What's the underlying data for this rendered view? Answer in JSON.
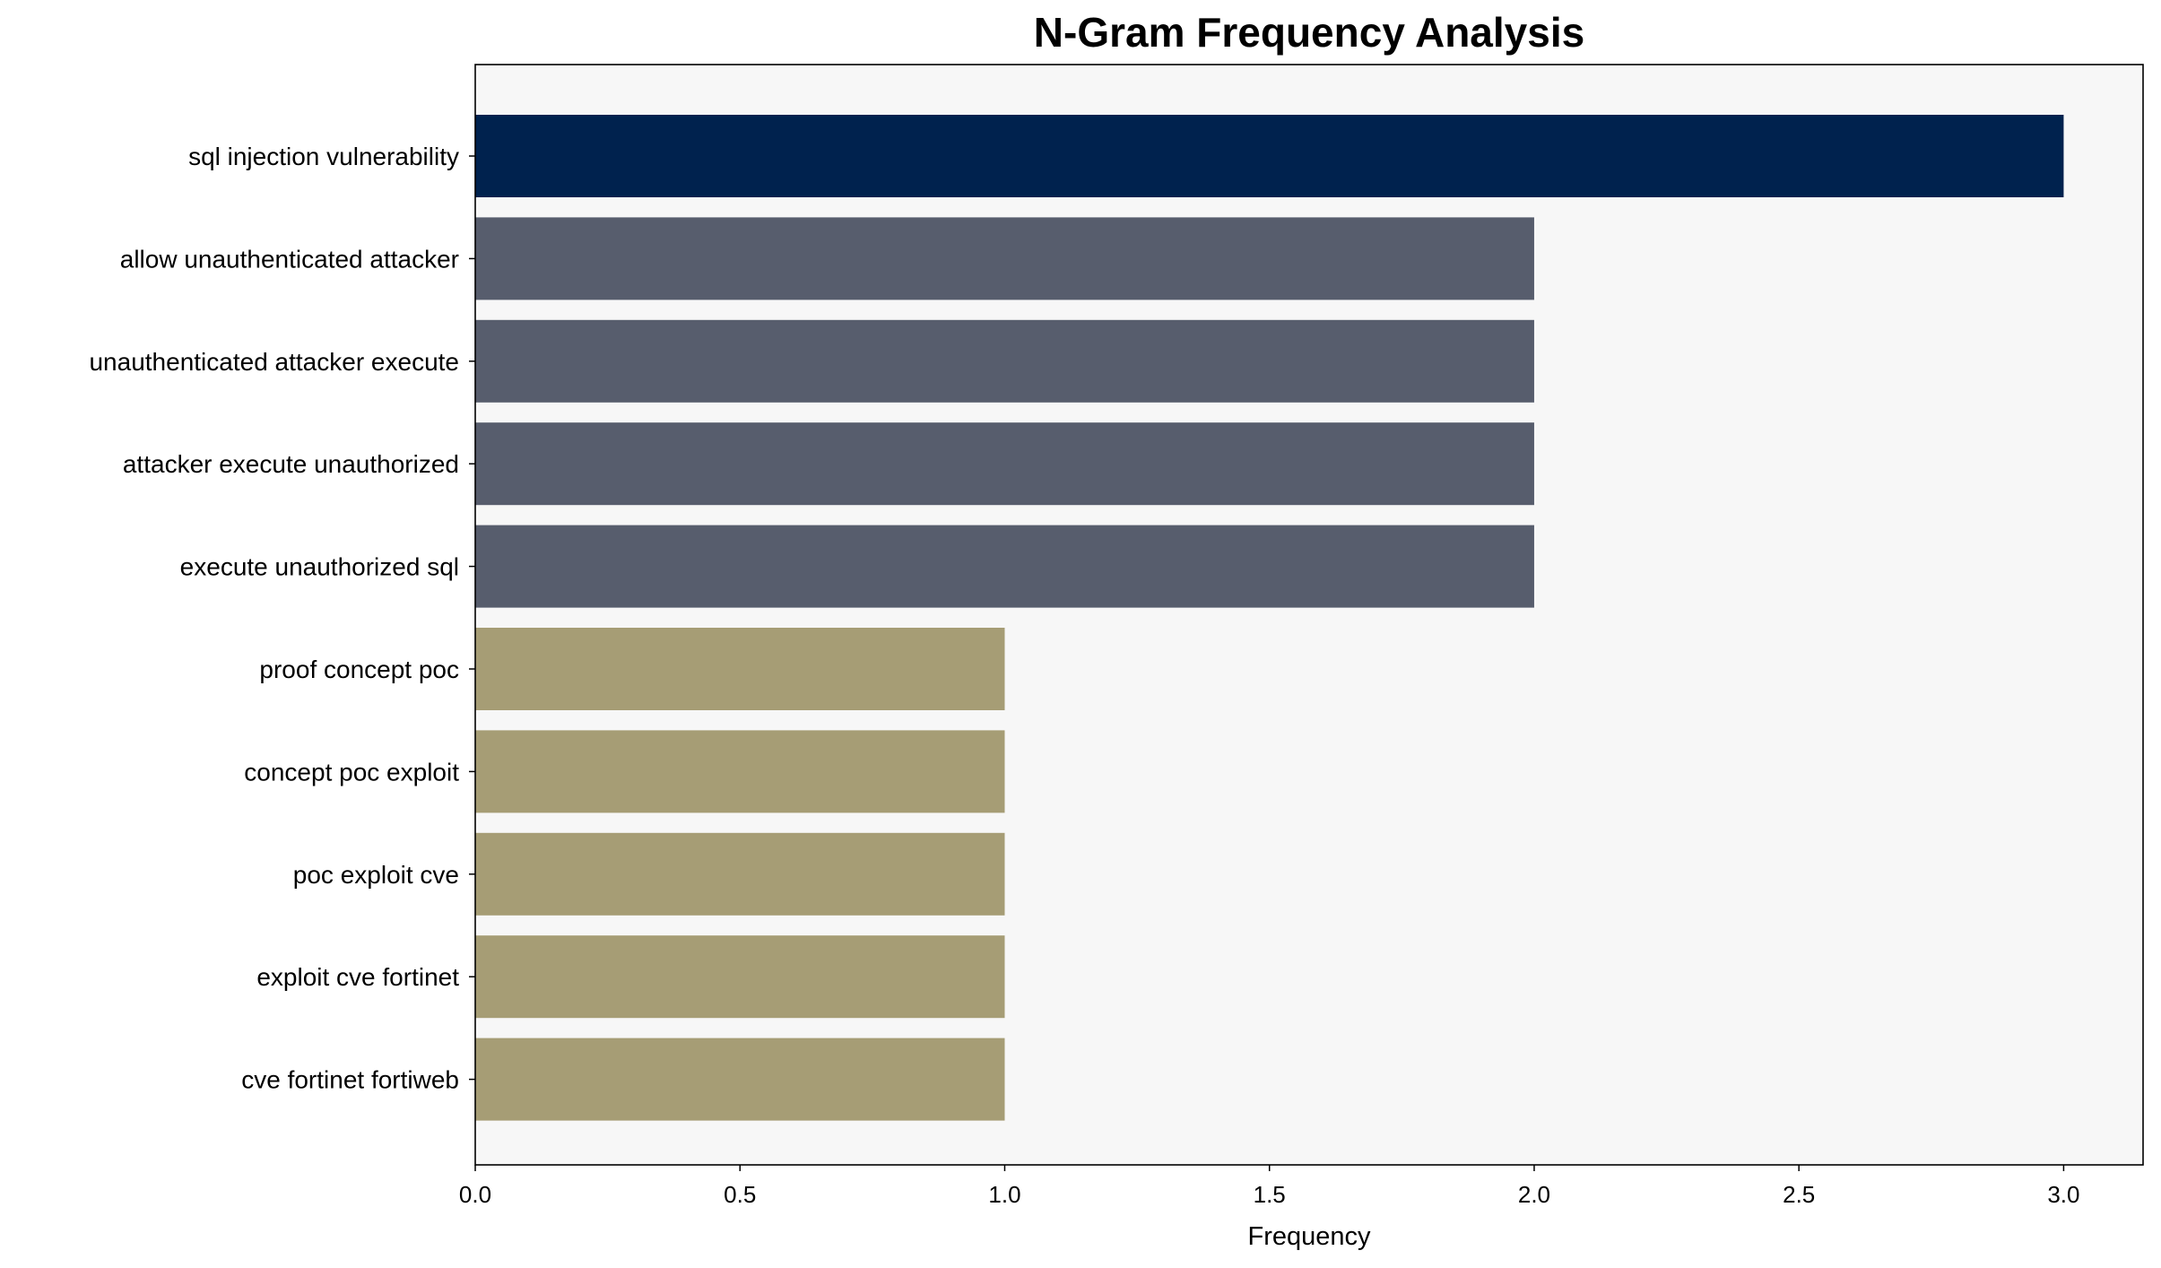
{
  "chart_data": {
    "type": "bar",
    "orientation": "horizontal",
    "title": "N-Gram Frequency Analysis",
    "xlabel": "Frequency",
    "ylabel": "",
    "xlim": [
      0,
      3.15
    ],
    "xticks": [
      "0.0",
      "0.5",
      "1.0",
      "1.5",
      "2.0",
      "2.5",
      "3.0"
    ],
    "grid": false,
    "background": "#f7f7f7",
    "categories": [
      "sql injection vulnerability",
      "allow unauthenticated attacker",
      "unauthenticated attacker execute",
      "attacker execute unauthorized",
      "execute unauthorized sql",
      "proof concept poc",
      "concept poc exploit",
      "poc exploit cve",
      "exploit cve fortinet",
      "cve fortinet fortiweb"
    ],
    "values": [
      3,
      2,
      2,
      2,
      2,
      1,
      1,
      1,
      1,
      1
    ],
    "colors": [
      "#00224e",
      "#575d6d",
      "#575d6d",
      "#575d6d",
      "#575d6d",
      "#a69d75",
      "#a69d75",
      "#a69d75",
      "#a69d75",
      "#a69d75"
    ]
  }
}
